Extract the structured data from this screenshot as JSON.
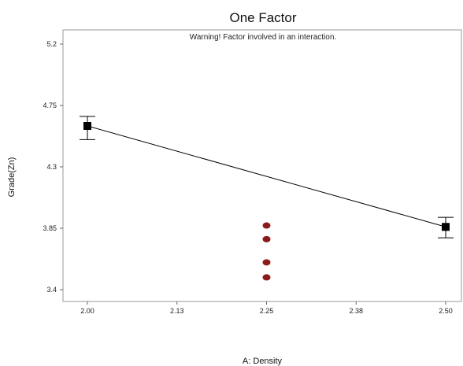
{
  "chart_data": {
    "type": "line",
    "title": "One Factor",
    "subtitle": "Warning! Factor involved in an interaction.",
    "xlabel": "A: Density",
    "ylabel": "Grade(Zn)",
    "xlim": [
      2.0,
      2.5
    ],
    "ylim": [
      3.4,
      5.2
    ],
    "x_ticks": [
      "2.00",
      "2.13",
      "2.25",
      "2.38",
      "2.50"
    ],
    "x_tick_values": [
      2.0,
      2.125,
      2.25,
      2.375,
      2.5
    ],
    "y_ticks": [
      "3.4",
      "3.85",
      "4.3",
      "4.75",
      "5.2"
    ],
    "y_tick_values": [
      3.4,
      3.85,
      4.3,
      4.75,
      5.2
    ],
    "grid": false,
    "series": [
      {
        "x": [
          2.0,
          2.5
        ],
        "y": [
          4.6,
          3.86
        ],
        "error_low": [
          4.5,
          3.78
        ],
        "error_high": [
          4.67,
          3.93
        ]
      }
    ],
    "design_points": {
      "x": [
        2.25,
        2.25,
        2.25,
        2.25
      ],
      "y": [
        3.87,
        3.77,
        3.6,
        3.49
      ]
    },
    "colors": {
      "line": "#000000",
      "design_points": "#8b1a1a",
      "axis": "#666666"
    }
  }
}
